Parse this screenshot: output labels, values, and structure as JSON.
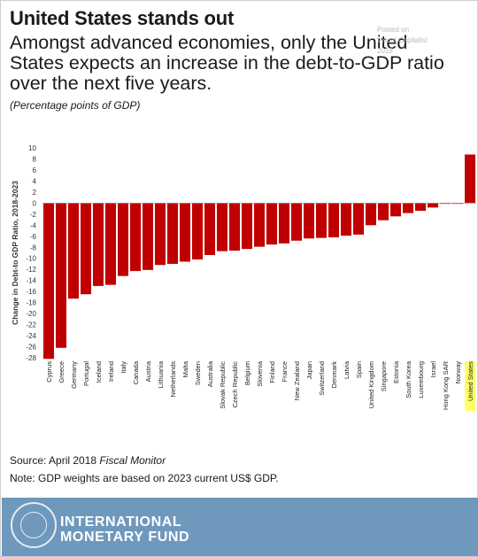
{
  "header": {
    "title": "United States stands out",
    "subtitle": "Amongst advanced economies, only the United States expects an increase in the debt-to-GDP ratio over the next five years.",
    "unit_note": "(Percentage points of GDP)"
  },
  "watermark": {
    "line1": "Posted on",
    "line2": "Visual Capitalist",
    "line3": "2018"
  },
  "colors": {
    "bar": "#c00000",
    "highlight": "#ffff66",
    "footer_bg": "#6f98bd"
  },
  "chart_data": {
    "type": "bar",
    "ylabel": "Change in Debt-to GDP Ratio, 2018-2023",
    "ylim": [
      -28,
      10
    ],
    "yticks": [
      10,
      8,
      6,
      4,
      2,
      0,
      -2,
      -4,
      -6,
      -8,
      -10,
      -12,
      -14,
      -16,
      -18,
      -20,
      -22,
      -24,
      -26,
      -28
    ],
    "highlight_category": "United States",
    "categories": [
      "Cyprus",
      "Greece",
      "Germany",
      "Portugal",
      "Iceland",
      "Ireland",
      "Italy",
      "Canada",
      "Austria",
      "Lithuania",
      "Netherlands",
      "Malta",
      "Sweden",
      "Australia",
      "Slovak Republic",
      "Czech Republic",
      "Belgium",
      "Slovenia",
      "Finland",
      "France",
      "New Zealand",
      "Japan",
      "Switzerland",
      "Denmark",
      "Latvia",
      "Spain",
      "United Kingdom",
      "Singapore",
      "Estonia",
      "South Korea",
      "Luxembourg",
      "Israel",
      "Hong Kong SAR",
      "Norway",
      "United States"
    ],
    "values": [
      -28.2,
      -26.2,
      -17.3,
      -16.5,
      -15.0,
      -14.8,
      -13.2,
      -12.3,
      -12.1,
      -11.2,
      -11.0,
      -10.6,
      -10.2,
      -9.4,
      -8.7,
      -8.6,
      -8.3,
      -7.9,
      -7.5,
      -7.3,
      -6.8,
      -6.4,
      -6.3,
      -6.2,
      -5.9,
      -5.7,
      -4.0,
      -3.1,
      -2.4,
      -1.8,
      -1.4,
      -0.8,
      -0.1,
      -0.1,
      8.8
    ]
  },
  "footer": {
    "source_prefix": "Source: April 2018 ",
    "source_italic": "Fiscal Monitor",
    "note": "Note: GDP weights are based on 2023 current US$ GDP.",
    "org_line1": "INTERNATIONAL",
    "org_line2": "MONETARY FUND"
  }
}
